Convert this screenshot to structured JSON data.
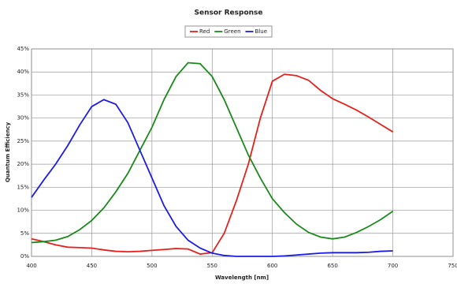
{
  "chart_data": {
    "type": "line",
    "title": "Sensor Response",
    "x_label": "Wavelength [nm]",
    "y_label": "Quantum Efficiency",
    "x": [
      400,
      410,
      420,
      430,
      440,
      450,
      460,
      470,
      480,
      490,
      500,
      510,
      520,
      530,
      540,
      550,
      560,
      570,
      580,
      590,
      600,
      610,
      620,
      630,
      640,
      650,
      660,
      670,
      680,
      690,
      700
    ],
    "series": [
      {
        "name": "Red",
        "color": "#e8201c",
        "values": [
          3.8,
          3.2,
          2.5,
          2.0,
          1.9,
          1.8,
          1.4,
          1.1,
          1.0,
          1.1,
          1.3,
          1.5,
          1.7,
          1.6,
          0.5,
          0.8,
          5,
          12,
          20,
          30,
          38,
          39.5,
          39.2,
          38.2,
          36,
          34.2,
          33,
          31.7,
          30.2,
          28.6,
          27
        ]
      },
      {
        "name": "Green",
        "color": "#1a8a1a",
        "values": [
          3.0,
          3.2,
          3.5,
          4.3,
          5.8,
          7.8,
          10.5,
          14,
          18,
          23,
          28,
          34,
          39,
          42,
          41.8,
          39,
          34,
          28,
          22,
          17,
          12.5,
          9.5,
          7,
          5.2,
          4.2,
          3.8,
          4.2,
          5.2,
          6.5,
          8,
          9.8
        ]
      },
      {
        "name": "Blue",
        "color": "#1c1ce8",
        "values": [
          12.8,
          16.5,
          20,
          24,
          28.5,
          32.5,
          34,
          33,
          29,
          23,
          17,
          11,
          6.5,
          3.5,
          1.8,
          0.7,
          0.2,
          0,
          0,
          0,
          0,
          0.1,
          0.3,
          0.5,
          0.7,
          0.8,
          0.8,
          0.8,
          0.9,
          1.1,
          1.2
        ]
      }
    ],
    "xlim": [
      400,
      750
    ],
    "xticks": [
      400,
      450,
      500,
      550,
      600,
      650,
      700,
      750
    ],
    "ylim": [
      0,
      45
    ],
    "yticks": [
      {
        "value": 0,
        "label": "0%"
      },
      {
        "value": 5,
        "label": "5%"
      },
      {
        "value": 10,
        "label": "10%"
      },
      {
        "value": 15,
        "label": "15%"
      },
      {
        "value": 20,
        "label": "20%"
      },
      {
        "value": 25,
        "label": "25%"
      },
      {
        "value": 30,
        "label": "30%"
      },
      {
        "value": 35,
        "label": "35%"
      },
      {
        "value": 40,
        "label": "40%"
      },
      {
        "value": 45,
        "label": "45%"
      }
    ],
    "grid": true,
    "legend": "top"
  }
}
